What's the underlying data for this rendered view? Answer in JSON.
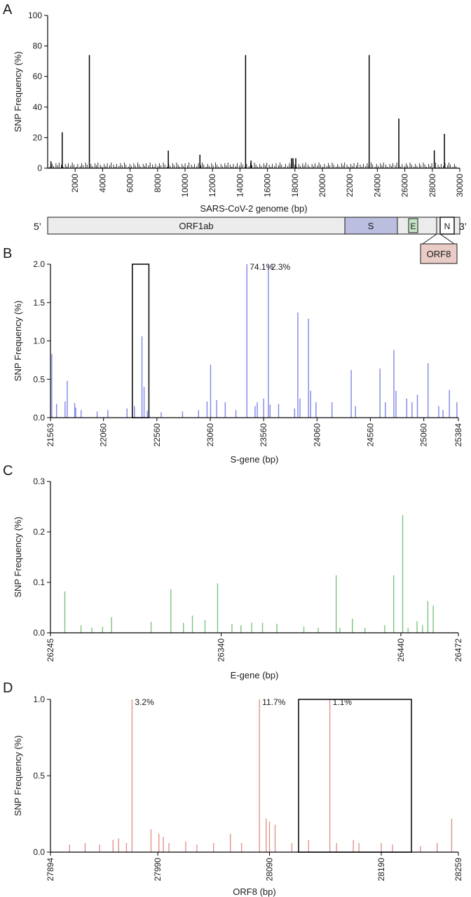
{
  "chart_data": [
    {
      "panel": "A",
      "type": "bar",
      "color": "#000000",
      "xlabel": "SARS-CoV-2 genome (bp)",
      "ylabel": "SNP Frequency (%)",
      "xlim": [
        0,
        30000
      ],
      "ylim": [
        0,
        100
      ],
      "xticks": [
        2000,
        4000,
        6000,
        8000,
        10000,
        12000,
        14000,
        16000,
        18000,
        20000,
        22000,
        24000,
        26000,
        28000,
        30000
      ],
      "yticks": [
        0,
        20,
        40,
        60,
        80,
        100
      ],
      "x": [
        241,
        1059,
        3037,
        8782,
        11083,
        14408,
        14805,
        17747,
        17858,
        18060,
        23403,
        25563,
        28144,
        28881
      ],
      "values": [
        4.5,
        23.5,
        74.1,
        11.5,
        8.8,
        74.1,
        5.0,
        6.5,
        6.5,
        6.5,
        74.1,
        32.5,
        11.7,
        22.5
      ]
    },
    {
      "panel": "B",
      "type": "bar",
      "color": "#7f86e6",
      "xlabel": "S-gene (bp)",
      "ylabel": "SNP Frequency (%)",
      "xlim": [
        21563,
        25384
      ],
      "ylim": [
        0,
        2.0
      ],
      "xticks": [
        21563,
        22060,
        22560,
        23060,
        23560,
        24060,
        24560,
        25060,
        25384
      ],
      "yticks": [
        0.0,
        0.5,
        1.0,
        1.5,
        2.0
      ],
      "x": [
        21575,
        21620,
        21700,
        21720,
        21790,
        21800,
        21850,
        22000,
        22100,
        22280,
        22350,
        22420,
        22440,
        22470,
        22600,
        22800,
        22950,
        23030,
        23063,
        23120,
        23200,
        23300,
        23403,
        23480,
        23500,
        23560,
        23604,
        23620,
        23700,
        23850,
        23880,
        23900,
        23980,
        24000,
        24050,
        24200,
        24380,
        24420,
        24650,
        24700,
        24780,
        24800,
        24900,
        24950,
        25000,
        25100,
        25200,
        25240,
        25300,
        25370
      ],
      "values": [
        0.83,
        0.18,
        0.21,
        0.48,
        0.19,
        0.13,
        0.1,
        0.08,
        0.1,
        0.12,
        0.15,
        1.06,
        0.4,
        0.09,
        0.07,
        0.08,
        0.1,
        0.21,
        0.69,
        0.23,
        0.2,
        0.1,
        2.0,
        0.15,
        0.2,
        0.25,
        2.0,
        0.17,
        0.18,
        0.12,
        1.37,
        0.25,
        1.29,
        0.35,
        0.2,
        0.2,
        0.62,
        0.15,
        0.64,
        0.2,
        0.88,
        0.35,
        0.25,
        0.2,
        0.3,
        0.71,
        0.15,
        0.1,
        0.36,
        0.2
      ],
      "annotations": [
        "74.1%",
        "2.3%"
      ]
    },
    {
      "panel": "C",
      "type": "bar",
      "color": "#7cc47f",
      "xlabel": "E-gene (bp)",
      "ylabel": "SNP Frequency (%)",
      "xlim": [
        26245,
        26472
      ],
      "ylim": [
        0,
        0.3
      ],
      "xticks": [
        26245,
        26340,
        26440,
        26472
      ],
      "yticks": [
        0.0,
        0.1,
        0.2,
        0.3
      ],
      "x": [
        26253,
        26262,
        26268,
        26274,
        26279,
        26301,
        26312,
        26319,
        26324,
        26331,
        26338,
        26346,
        26351,
        26357,
        26363,
        26371,
        26386,
        26394,
        26404,
        26406,
        26413,
        26420,
        26431,
        26436,
        26441,
        26444,
        26449,
        26452,
        26455,
        26458
      ],
      "values": [
        0.082,
        0.015,
        0.01,
        0.012,
        0.031,
        0.022,
        0.086,
        0.02,
        0.034,
        0.025,
        0.098,
        0.018,
        0.015,
        0.02,
        0.02,
        0.018,
        0.012,
        0.01,
        0.114,
        0.01,
        0.028,
        0.01,
        0.015,
        0.114,
        0.233,
        0.01,
        0.023,
        0.015,
        0.063,
        0.054
      ]
    },
    {
      "panel": "D",
      "type": "bar",
      "color": "#e0958a",
      "xlabel": "ORF8 (bp)",
      "ylabel": "SNP Frequency (%)",
      "xlim": [
        27894,
        28259
      ],
      "ylim": [
        0,
        1.0
      ],
      "xticks": [
        27894,
        27990,
        28090,
        28190,
        28259
      ],
      "yticks": [
        0.0,
        0.5,
        1.0
      ],
      "x": [
        27911,
        27925,
        27938,
        27950,
        27955,
        27962,
        27967,
        27984,
        27991,
        27995,
        28000,
        28015,
        28025,
        28040,
        28055,
        28065,
        28081,
        28087,
        28090,
        28095,
        28110,
        28125,
        28144,
        28150,
        28165,
        28170,
        28190,
        28200,
        28225,
        28240,
        28253
      ],
      "values": [
        0.05,
        0.06,
        0.05,
        0.08,
        0.09,
        0.06,
        1.0,
        0.15,
        0.12,
        0.1,
        0.06,
        0.07,
        0.05,
        0.06,
        0.12,
        0.06,
        1.0,
        0.22,
        0.2,
        0.18,
        0.06,
        0.08,
        1.0,
        0.06,
        0.08,
        0.06,
        0.06,
        0.05,
        0.04,
        0.06,
        0.22
      ],
      "annotations": [
        "3.2%",
        "11.7%",
        "1.1%"
      ]
    }
  ],
  "panel_letters": [
    "A",
    "B",
    "C",
    "D"
  ],
  "genome_map": {
    "five_prime": "5’",
    "three_prime": "3’",
    "genes": [
      "ORF1ab",
      "S",
      "E",
      "N",
      "ORF8"
    ]
  }
}
